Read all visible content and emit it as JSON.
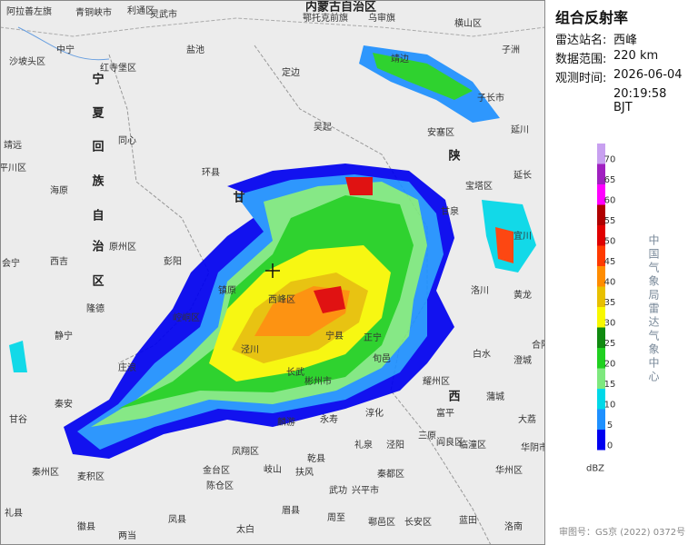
{
  "title": "组合反射率",
  "info": [
    {
      "label": "雷达站名:",
      "value": "西峰"
    },
    {
      "label": "数据范围:",
      "value": "220 km"
    },
    {
      "label": "观测时间:",
      "value": "2026-06-04"
    },
    {
      "label": "",
      "value": "20:19:58 BJT"
    }
  ],
  "legend": {
    "items": [
      {
        "value": 0,
        "color": "#0000f0"
      },
      {
        "value": 5,
        "color": "#1e90ff"
      },
      {
        "value": 10,
        "color": "#00d8e8"
      },
      {
        "value": 15,
        "color": "#7ee87e"
      },
      {
        "value": 20,
        "color": "#20d020"
      },
      {
        "value": 25,
        "color": "#108a10"
      },
      {
        "value": 30,
        "color": "#f8f800"
      },
      {
        "value": 35,
        "color": "#e8c000"
      },
      {
        "value": 40,
        "color": "#ff8c00"
      },
      {
        "value": 45,
        "color": "#ff3a00"
      },
      {
        "value": 50,
        "color": "#e00000"
      },
      {
        "value": 55,
        "color": "#b00000"
      },
      {
        "value": 60,
        "color": "#ff00ff"
      },
      {
        "value": 65,
        "color": "#a020c0"
      },
      {
        "value": 70,
        "color": "#c8a0f0"
      }
    ],
    "unit": "dBZ"
  },
  "agency": "中国气象局雷达气象中心",
  "approval": "审图号：GS京 (2022) 0372号",
  "map": {
    "regions": [
      "内蒙古自治区",
      "陕",
      "甘",
      "西",
      "宁",
      "夏",
      "回",
      "族",
      "自",
      "治",
      "区"
    ],
    "places": [
      "阿拉善左旗",
      "青铜峡市",
      "利通区",
      "灵武市",
      "鄂托克前旗",
      "乌审旗",
      "横山区",
      "子洲",
      "中宁",
      "沙坡头区",
      "红寺堡区",
      "盐池",
      "定边",
      "吴起",
      "靖边",
      "子长市",
      "延川",
      "安塞区",
      "延长",
      "宝塔区",
      "甘泉",
      "宜川",
      "洛川",
      "黄龙",
      "白水",
      "澄城",
      "合阳",
      "蒲城",
      "大荔",
      "富平",
      "耀州区",
      "同心",
      "海原",
      "原州区",
      "西吉",
      "彭阳",
      "环县",
      "镇原",
      "西峰区",
      "宁县",
      "正宁",
      "旬邑",
      "长武",
      "彬州市",
      "泾川",
      "崆峒区",
      "隆德",
      "静宁",
      "庄浪",
      "秦安",
      "甘谷",
      "麟游",
      "永寿",
      "淳化",
      "乾县",
      "礼泉",
      "泾阳",
      "三原",
      "阎良区",
      "临潼区",
      "凤翔区",
      "岐山",
      "扶风",
      "武功",
      "兴平市",
      "秦都区",
      "华州区",
      "华阴市",
      "陈仓区",
      "金台区",
      "麦积区",
      "秦州区",
      "礼县",
      "凤县",
      "太白",
      "周至",
      "鄠邑区",
      "长安区",
      "蓝田",
      "洛南",
      "眉县",
      "两当",
      "徽县",
      "靖远",
      "会宁",
      "平川区"
    ]
  }
}
